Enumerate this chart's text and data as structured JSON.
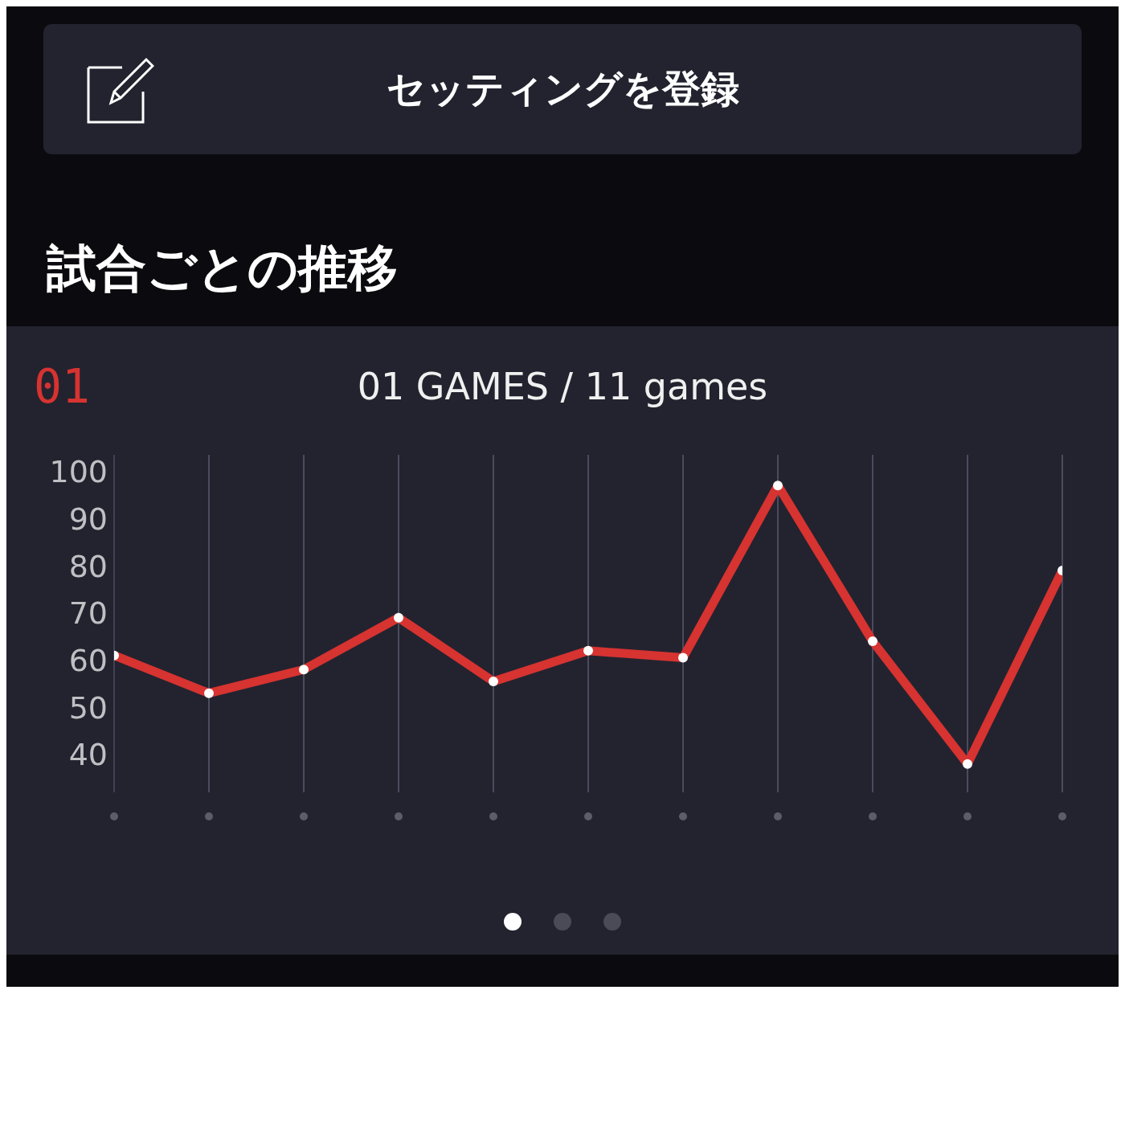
{
  "chart_data": {
    "type": "line",
    "title": "試合ごとの推移",
    "subtitle": "01 GAMES / 11 games",
    "annotations": [
      "セッティングを登録",
      "01"
    ],
    "categories": [
      null,
      null,
      null,
      null,
      null,
      null,
      null,
      null,
      null,
      null,
      null
    ],
    "series": [
      {
        "color": "#d63331",
        "values": [
          61,
          53,
          58,
          69,
          55.5,
          62,
          60.5,
          97,
          64,
          38,
          79
        ]
      }
    ],
    "ylim": [
      32,
      103.5
    ],
    "yticks": [
      40,
      50,
      60,
      70,
      80,
      90,
      100
    ],
    "grid": "x",
    "marker": "circle",
    "line_style": "solid"
  }
}
